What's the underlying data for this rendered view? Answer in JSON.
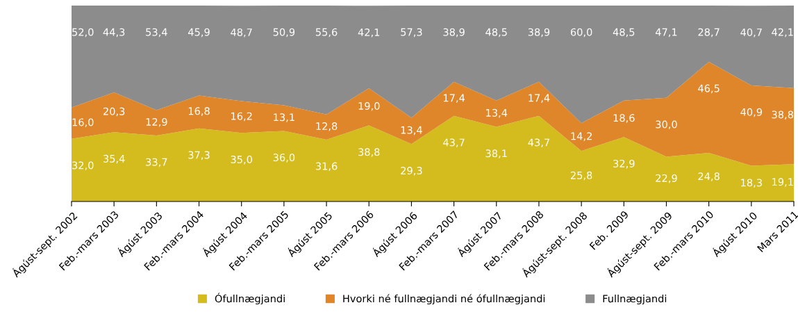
{
  "chart_data": {
    "type": "area",
    "stacked": true,
    "tick_labels": "x",
    "grid": false,
    "legend": "bottom",
    "categories": [
      "Ágúst-sept. 2002",
      "Feb.-mars 2003",
      "Ágúst 2003",
      "Feb.-mars 2004",
      "Ágúst 2004",
      "Feb.-mars 2005",
      "Ágúst 2005",
      "Feb.-mars 2006",
      "Ágúst 2006",
      "Feb.-mars 2007",
      "Ágúst 2007",
      "Feb.-mars 2008",
      "Ágúst-sept. 2008",
      "Feb. 2009",
      "Ágúst-sept. 2009",
      "Feb.-mars 2010",
      "Ágúst 2010",
      "Mars 2011"
    ],
    "series": [
      {
        "name": "Ófullnægjandi",
        "color": "#d4bc1f",
        "values": [
          32.0,
          35.4,
          33.7,
          37.3,
          35.0,
          36.0,
          31.6,
          38.8,
          29.3,
          43.7,
          38.1,
          43.7,
          25.8,
          32.9,
          22.9,
          24.8,
          18.3,
          19.1
        ],
        "value_labels": [
          "32,0",
          "35,4",
          "33,7",
          "37,3",
          "35,0",
          "36,0",
          "31,6",
          "38,8",
          "29,3",
          "43,7",
          "38,1",
          "43,7",
          "25,8",
          "32,9",
          "22,9",
          "24,8",
          "18,3",
          "19,1"
        ]
      },
      {
        "name": "Hvorki né fullnægjandi né ófullnægjandi",
        "color": "#e0862a",
        "values": [
          16.0,
          20.3,
          12.9,
          16.8,
          16.2,
          13.1,
          12.8,
          19.0,
          13.4,
          17.4,
          13.4,
          17.4,
          14.2,
          18.6,
          30.0,
          46.5,
          40.9,
          38.8
        ],
        "value_labels": [
          "16,0",
          "20,3",
          "12,9",
          "16,8",
          "16,2",
          "13,1",
          "12,8",
          "19,0",
          "13,4",
          "17,4",
          "13,4",
          "17,4",
          "14,2",
          "18,6",
          "30,0",
          "46,5",
          "40,9",
          "38,8"
        ]
      },
      {
        "name": "Fullnægjandi",
        "color": "#8c8c8c",
        "values": [
          52.0,
          44.3,
          53.4,
          45.9,
          48.7,
          50.9,
          55.6,
          42.1,
          57.3,
          38.9,
          48.5,
          38.9,
          60.0,
          48.5,
          47.1,
          28.7,
          40.7,
          42.1
        ],
        "value_labels": [
          "52,0",
          "44,3",
          "53,4",
          "45,9",
          "48,7",
          "50,9",
          "55,6",
          "42,1",
          "57,3",
          "38,9",
          "48,5",
          "38,9",
          "60,0",
          "48,5",
          "47,1",
          "28,7",
          "40,7",
          "42,1"
        ]
      }
    ]
  }
}
